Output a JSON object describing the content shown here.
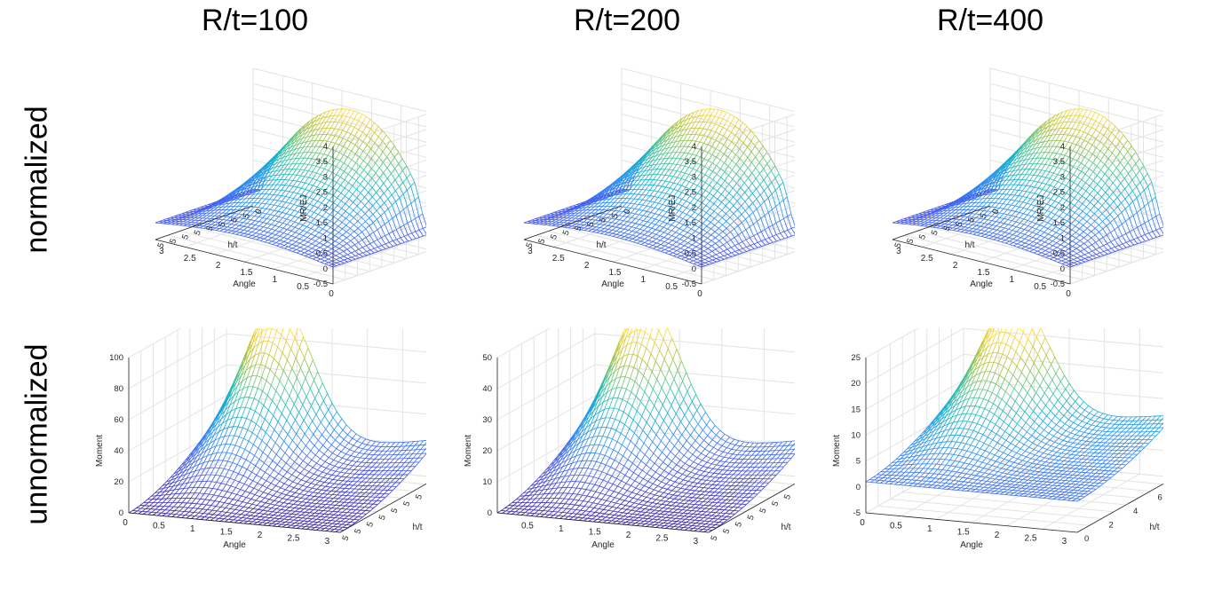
{
  "column_titles": [
    "R/t=100",
    "R/t=200",
    "R/t=400"
  ],
  "row_labels": [
    "normalized",
    "unnormalized"
  ],
  "chart_data": [
    {
      "type": "surface",
      "panel": "normalized R/t=100",
      "ylabel": "MR/EJ",
      "xlabel": "Angle",
      "hlabel": "h/t",
      "zlim": [
        -0.5,
        4
      ],
      "zticks": [
        "-0.5",
        "0",
        "0.5",
        "1",
        "1.5",
        "2",
        "2.5",
        "3",
        "3.5",
        "4"
      ],
      "xticks": [
        "3",
        "2.5",
        "2",
        "1.5",
        "1",
        "0.5",
        "0"
      ],
      "htick_glyphs": "5 5 5 5 5 5 5 5 0",
      "x_range": [
        0,
        3.14
      ],
      "peak": 3.7
    },
    {
      "type": "surface",
      "panel": "normalized R/t=200",
      "ylabel": "MR/EJ",
      "xlabel": "Angle",
      "hlabel": "h/t",
      "zlim": [
        -0.5,
        4
      ],
      "zticks": [
        "-0.5",
        "0",
        "0.5",
        "1",
        "1.5",
        "2",
        "2.5",
        "3",
        "3.5",
        "4"
      ],
      "xticks": [
        "3",
        "2.5",
        "2",
        "1.5",
        "1",
        "0.5",
        "0"
      ],
      "htick_glyphs": "5 5 5 5 5 5 5 5 0",
      "x_range": [
        0,
        3.14
      ],
      "peak": 3.7
    },
    {
      "type": "surface",
      "panel": "normalized R/t=400",
      "ylabel": "MR/EJ",
      "xlabel": "Angle",
      "hlabel": "h/t",
      "zlim": [
        -0.5,
        4
      ],
      "zticks": [
        "-0.5",
        "0",
        "0.5",
        "1",
        "1.5",
        "2",
        "2.5",
        "3",
        "3.5",
        "4"
      ],
      "xticks": [
        "3",
        "2.5",
        "2",
        "1.5",
        "1",
        "0.5",
        "0"
      ],
      "htick_glyphs": "5 5 5 5 5 5 5 5 0",
      "x_range": [
        0,
        3.14
      ],
      "peak": 3.7
    },
    {
      "type": "surface",
      "panel": "unnormalized R/t=100",
      "ylabel": "Moment",
      "xlabel": "Angle",
      "hlabel": "h/t",
      "zlim": [
        0,
        100
      ],
      "zticks": [
        "0",
        "20",
        "40",
        "60",
        "80",
        "100"
      ],
      "xticks": [
        "0",
        "0.5",
        "1",
        "1.5",
        "2",
        "2.5",
        "3"
      ],
      "htick_glyphs": "5 5 5 5 5 5 5 5 5",
      "x_range": [
        0,
        3.14
      ],
      "peak": 97
    },
    {
      "type": "surface",
      "panel": "unnormalized R/t=200",
      "ylabel": "Moment",
      "xlabel": "Angle",
      "hlabel": "h/t",
      "zlim": [
        0,
        50
      ],
      "zticks": [
        "0",
        "10",
        "20",
        "30",
        "40",
        "50"
      ],
      "xticks": [
        "0.5",
        "1",
        "1.5",
        "2",
        "2.5",
        "3"
      ],
      "htick_glyphs": "5 5 5 5 5 5 5 5 5",
      "x_range": [
        0,
        3.14
      ],
      "peak": 48
    },
    {
      "type": "surface",
      "panel": "unnormalized R/t=400",
      "ylabel": "Moment",
      "xlabel": "Angle",
      "hlabel": "h/t",
      "zlim": [
        -5,
        25
      ],
      "zticks": [
        "-5",
        "0",
        "5",
        "10",
        "15",
        "20",
        "25"
      ],
      "xticks": [
        "0",
        "0.5",
        "1",
        "1.5",
        "2",
        "2.5",
        "3"
      ],
      "htick_glyphs": "0 2 4 6 8",
      "x_range": [
        0,
        3.14
      ],
      "peak": 24
    }
  ]
}
